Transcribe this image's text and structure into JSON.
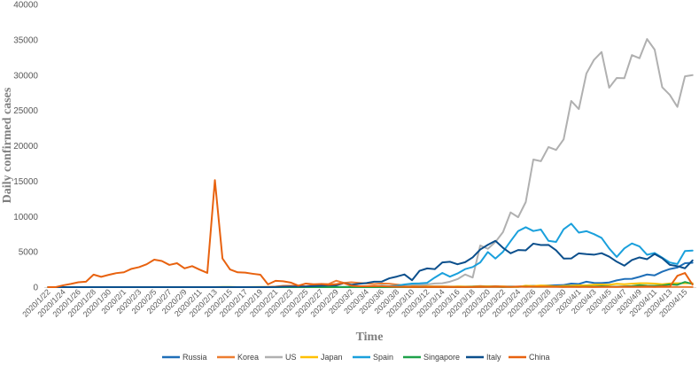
{
  "chart_data": {
    "type": "line",
    "xlabel": "Time",
    "ylabel": "Daily confirmed cases",
    "ylim": [
      0,
      40000
    ],
    "yticks": [
      0,
      5000,
      10000,
      15000,
      20000,
      25000,
      30000,
      35000,
      40000
    ],
    "grid": false,
    "legend_position": "bottom",
    "x": [
      "2020/1/22",
      "2020/1/23",
      "2020/1/24",
      "2020/1/25",
      "2020/1/26",
      "2020/1/27",
      "2020/1/28",
      "2020/1/29",
      "2020/1/30",
      "2020/1/31",
      "2020/2/1",
      "2020/2/2",
      "2020/2/3",
      "2020/2/4",
      "2020/2/5",
      "2020/2/6",
      "2020/2/7",
      "2020/2/8",
      "2020/2/9",
      "2020/2/10",
      "2020/2/11",
      "2020/2/12",
      "2020/2/13",
      "2020/2/14",
      "2020/2/15",
      "2020/2/16",
      "2020/2/17",
      "2020/2/18",
      "2020/2/19",
      "2020/2/20",
      "2020/2/21",
      "2020/2/22",
      "2020/2/23",
      "2020/2/24",
      "2020/2/25",
      "2020/2/26",
      "2020/2/27",
      "2020/2/28",
      "2020/2/29",
      "2020/3/1",
      "2020/3/2",
      "2020/3/3",
      "2020/3/4",
      "2020/3/5",
      "2020/3/6",
      "2020/3/7",
      "2020/3/8",
      "2020/3/9",
      "2020/3/10",
      "2020/3/11",
      "2020/3/12",
      "2020/3/13",
      "2020/3/14",
      "2020/3/15",
      "2020/3/16",
      "2020/3/17",
      "2020/3/18",
      "2020/3/19",
      "2020/3/20",
      "2020/3/21",
      "2020/3/22",
      "2020/3/23",
      "2020/3/24",
      "2020/3/25",
      "2020/3/26",
      "2020/3/27",
      "2020/3/28",
      "2020/3/29",
      "2020/3/30",
      "2020/3/31",
      "2020/4/1",
      "2020/4/2",
      "2020/4/3",
      "2020/4/4",
      "2020/4/5",
      "2020/4/6",
      "2020/4/7",
      "2020/4/8",
      "2020/4/9",
      "2020/4/10",
      "2020/4/11",
      "2020/4/12",
      "2020/4/13",
      "2020/4/14",
      "2020/4/15",
      "2020/4/16"
    ],
    "xtick_labels": [
      "2020/1/22",
      "2020/1/24",
      "2020/1/26",
      "2020/1/28",
      "2020/1/30",
      "2020/2/1",
      "2020/2/3",
      "2020/2/5",
      "2020/2/7",
      "2020/2/9",
      "2020/2/11",
      "2020/2/13",
      "2020/2/15",
      "2020/2/17",
      "2020/2/19",
      "2020/2/21",
      "2020/2/23",
      "2020/2/25",
      "2020/2/27",
      "2020/2/29",
      "2020/3/2",
      "2020/3/4",
      "2020/3/6",
      "2020/3/8",
      "2020/3/10",
      "2020/3/12",
      "2020/3/14",
      "2020/3/16",
      "2020/3/18",
      "2020/3/20",
      "2020/3/22",
      "2020/3/24",
      "2020/3/26",
      "2020/3/28",
      "2020/3/30",
      "2020/4/1",
      "2020/4/3",
      "2020/4/5",
      "2020/4/7",
      "2020/4/9",
      "2020/4/11",
      "2020/4/13",
      "2020/4/15"
    ],
    "series": [
      {
        "name": "Russia",
        "color": "#1f6fb8",
        "values": [
          0,
          0,
          0,
          0,
          0,
          0,
          0,
          0,
          0,
          2,
          0,
          0,
          0,
          0,
          0,
          0,
          0,
          0,
          0,
          0,
          0,
          0,
          0,
          0,
          0,
          0,
          0,
          0,
          0,
          0,
          0,
          0,
          0,
          0,
          0,
          0,
          0,
          0,
          0,
          0,
          1,
          0,
          0,
          1,
          0,
          0,
          10,
          0,
          3,
          8,
          6,
          17,
          11,
          4,
          29,
          21,
          30,
          52,
          54,
          53,
          57,
          71,
          57,
          163,
          182,
          196,
          228,
          270,
          302,
          500,
          440,
          771,
          601,
          582,
          658,
          954,
          1154,
          1175,
          1459,
          1786,
          1667,
          2186,
          2558,
          2774,
          3388,
          3448
        ]
      },
      {
        "name": "Korea",
        "color": "#ed7d31",
        "values": [
          1,
          0,
          1,
          0,
          1,
          1,
          0,
          0,
          0,
          4,
          1,
          3,
          0,
          1,
          3,
          5,
          1,
          0,
          3,
          0,
          1,
          0,
          0,
          0,
          0,
          2,
          1,
          1,
          15,
          34,
          74,
          190,
          210,
          207,
          130,
          253,
          449,
          427,
          909,
          595,
          686,
          600,
          516,
          438,
          518,
          483,
          367,
          248,
          131,
          242,
          114,
          110,
          107,
          76,
          74,
          84,
          93,
          152,
          87,
          147,
          98,
          64,
          76,
          100,
          104,
          91,
          146,
          105,
          78,
          125,
          101,
          89,
          86,
          94,
          81,
          47,
          47,
          53,
          39,
          27,
          30,
          32,
          25,
          27,
          27,
          22
        ]
      },
      {
        "name": "US",
        "color": "#b0b0b0",
        "values": [
          1,
          0,
          1,
          0,
          3,
          0,
          0,
          0,
          0,
          2,
          1,
          0,
          3,
          0,
          0,
          0,
          0,
          0,
          0,
          0,
          1,
          0,
          1,
          0,
          0,
          0,
          0,
          0,
          0,
          0,
          0,
          2,
          0,
          0,
          0,
          1,
          1,
          2,
          8,
          6,
          23,
          20,
          31,
          68,
          45,
          140,
          116,
          65,
          376,
          322,
          382,
          516,
          548,
          772,
          1133,
          1789,
          1362,
          5894,
          5423,
          6389,
          7787,
          10571,
          9893,
          12038,
          18058,
          17821,
          19821,
          19408,
          20922,
          26341,
          25200,
          30227,
          32159,
          33264,
          28219,
          29595,
          29556,
          32829,
          32385,
          35098,
          33608,
          28280,
          27200,
          25499,
          29832,
          30000
        ]
      },
      {
        "name": "Japan",
        "color": "#ffc000",
        "values": [
          2,
          0,
          0,
          0,
          2,
          0,
          3,
          0,
          4,
          4,
          5,
          0,
          0,
          0,
          2,
          0,
          0,
          1,
          0,
          2,
          0,
          0,
          0,
          18,
          12,
          6,
          0,
          22,
          23,
          21,
          12,
          12,
          25,
          10,
          20,
          20,
          35,
          22,
          15,
          39,
          11,
          14,
          28,
          39,
          29,
          46,
          62,
          20,
          25,
          53,
          75,
          38,
          56,
          24,
          89,
          57,
          74,
          68,
          113,
          49,
          92,
          30,
          32,
          211,
          164,
          232,
          184,
          104,
          179,
          223,
          253,
          252,
          342,
          365,
          336,
          467,
          413,
          484,
          550,
          546,
          507,
          408,
          513,
          556,
          554,
          555
        ]
      },
      {
        "name": "Spain",
        "color": "#1aa0dc",
        "values": [
          0,
          0,
          0,
          0,
          0,
          0,
          0,
          0,
          0,
          0,
          1,
          0,
          0,
          0,
          0,
          0,
          0,
          0,
          1,
          0,
          0,
          0,
          0,
          0,
          0,
          0,
          0,
          0,
          0,
          0,
          0,
          0,
          0,
          0,
          6,
          8,
          8,
          12,
          15,
          26,
          52,
          37,
          51,
          63,
          185,
          120,
          209,
          370,
          496,
          537,
          618,
          1350,
          2010,
          1480,
          1934,
          2545,
          2845,
          3499,
          4967,
          4043,
          5006,
          6498,
          7936,
          8473,
          7938,
          8149,
          6549,
          6398,
          8195,
          8975,
          7713,
          7917,
          7499,
          6969,
          5478,
          4273,
          5478,
          6180,
          5756,
          4576,
          4830,
          4167,
          3477,
          3268,
          5103,
          5166
        ]
      },
      {
        "name": "Singapore",
        "color": "#1fa24a",
        "values": [
          0,
          1,
          2,
          0,
          1,
          1,
          0,
          3,
          3,
          3,
          2,
          1,
          1,
          4,
          4,
          2,
          3,
          3,
          7,
          3,
          2,
          3,
          8,
          9,
          9,
          4,
          3,
          5,
          2,
          3,
          0,
          1,
          0,
          2,
          2,
          0,
          2,
          0,
          1,
          8,
          0,
          2,
          4,
          2,
          6,
          12,
          10,
          13,
          16,
          12,
          12,
          13,
          14,
          14,
          17,
          23,
          47,
          32,
          40,
          47,
          23,
          54,
          49,
          73,
          52,
          49,
          70,
          65,
          47,
          74,
          49,
          74,
          65,
          120,
          75,
          66,
          106,
          142,
          287,
          198,
          191,
          233,
          386,
          334,
          728,
          447
        ]
      },
      {
        "name": "Italy",
        "color": "#0b4f8c",
        "values": [
          0,
          0,
          0,
          0,
          0,
          0,
          0,
          0,
          0,
          2,
          0,
          0,
          0,
          0,
          0,
          0,
          1,
          0,
          0,
          0,
          0,
          0,
          0,
          0,
          0,
          0,
          0,
          0,
          0,
          0,
          17,
          58,
          78,
          72,
          94,
          147,
          185,
          234,
          239,
          573,
          335,
          466,
          587,
          769,
          778,
          1247,
          1492,
          1797,
          977,
          2313,
          2651,
          2547,
          3497,
          3590,
          3233,
          3526,
          4207,
          5322,
          5986,
          6557,
          5560,
          4789,
          5249,
          5210,
          6153,
          5959,
          5974,
          5217,
          4050,
          4053,
          4782,
          4668,
          4585,
          4805,
          4316,
          3599,
          3039,
          3836,
          4204,
          3951,
          4694,
          4092,
          3153,
          2972,
          2667,
          3786
        ]
      },
      {
        "name": "China",
        "color": "#e8620f",
        "values": [
          0,
          0,
          259,
          457,
          688,
          769,
          1771,
          1459,
          1737,
          1982,
          2101,
          2590,
          2829,
          3235,
          3884,
          3694,
          3143,
          3385,
          2652,
          2973,
          2467,
          2015,
          15136,
          4050,
          2502,
          2097,
          2050,
          1890,
          1749,
          394,
          891,
          826,
          648,
          214,
          508,
          406,
          433,
          327,
          427,
          573,
          202,
          125,
          119,
          139,
          143,
          99,
          44,
          40,
          19,
          24,
          15,
          20,
          11,
          20,
          16,
          21,
          13,
          34,
          39,
          41,
          46,
          39,
          78,
          47,
          67,
          55,
          54,
          45,
          31,
          36,
          35,
          31,
          19,
          30,
          39,
          32,
          62,
          42,
          63,
          99,
          46,
          108,
          89,
          1600,
          2000,
          352
        ]
      }
    ]
  }
}
